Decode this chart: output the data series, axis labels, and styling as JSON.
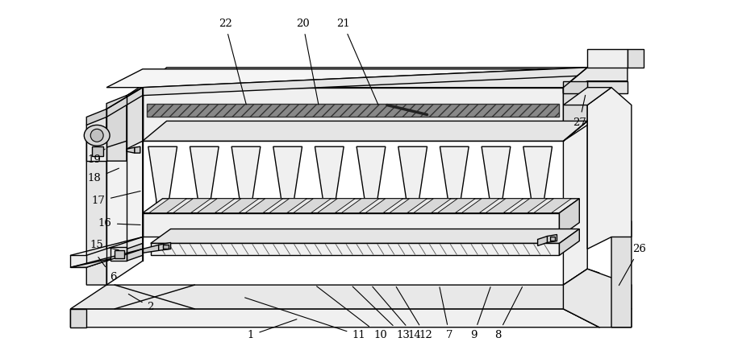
{
  "background_color": "#ffffff",
  "line_color": "#000000",
  "figsize": [
    9.1,
    4.3
  ],
  "dpi": 100,
  "annotations": [
    [
      "1",
      310,
      418,
      370,
      397
    ],
    [
      "2",
      185,
      383,
      155,
      365
    ],
    [
      "6",
      138,
      345,
      118,
      318
    ],
    [
      "7",
      558,
      418,
      545,
      355
    ],
    [
      "8",
      618,
      418,
      650,
      355
    ],
    [
      "9",
      588,
      418,
      610,
      355
    ],
    [
      "10",
      472,
      418,
      390,
      355
    ],
    [
      "11",
      445,
      418,
      300,
      370
    ],
    [
      "12",
      528,
      418,
      490,
      355
    ],
    [
      "13",
      500,
      418,
      435,
      355
    ],
    [
      "14",
      514,
      418,
      460,
      355
    ],
    [
      "15",
      118,
      305,
      148,
      312
    ],
    [
      "16",
      128,
      278,
      175,
      280
    ],
    [
      "17",
      120,
      250,
      175,
      237
    ],
    [
      "18",
      115,
      222,
      148,
      208
    ],
    [
      "19",
      115,
      198,
      128,
      185
    ],
    [
      "20",
      375,
      28,
      395,
      132
    ],
    [
      "21",
      425,
      28,
      470,
      132
    ],
    [
      "22",
      278,
      28,
      305,
      132
    ],
    [
      "26",
      795,
      310,
      768,
      358
    ],
    [
      "27",
      720,
      152,
      728,
      115
    ]
  ]
}
